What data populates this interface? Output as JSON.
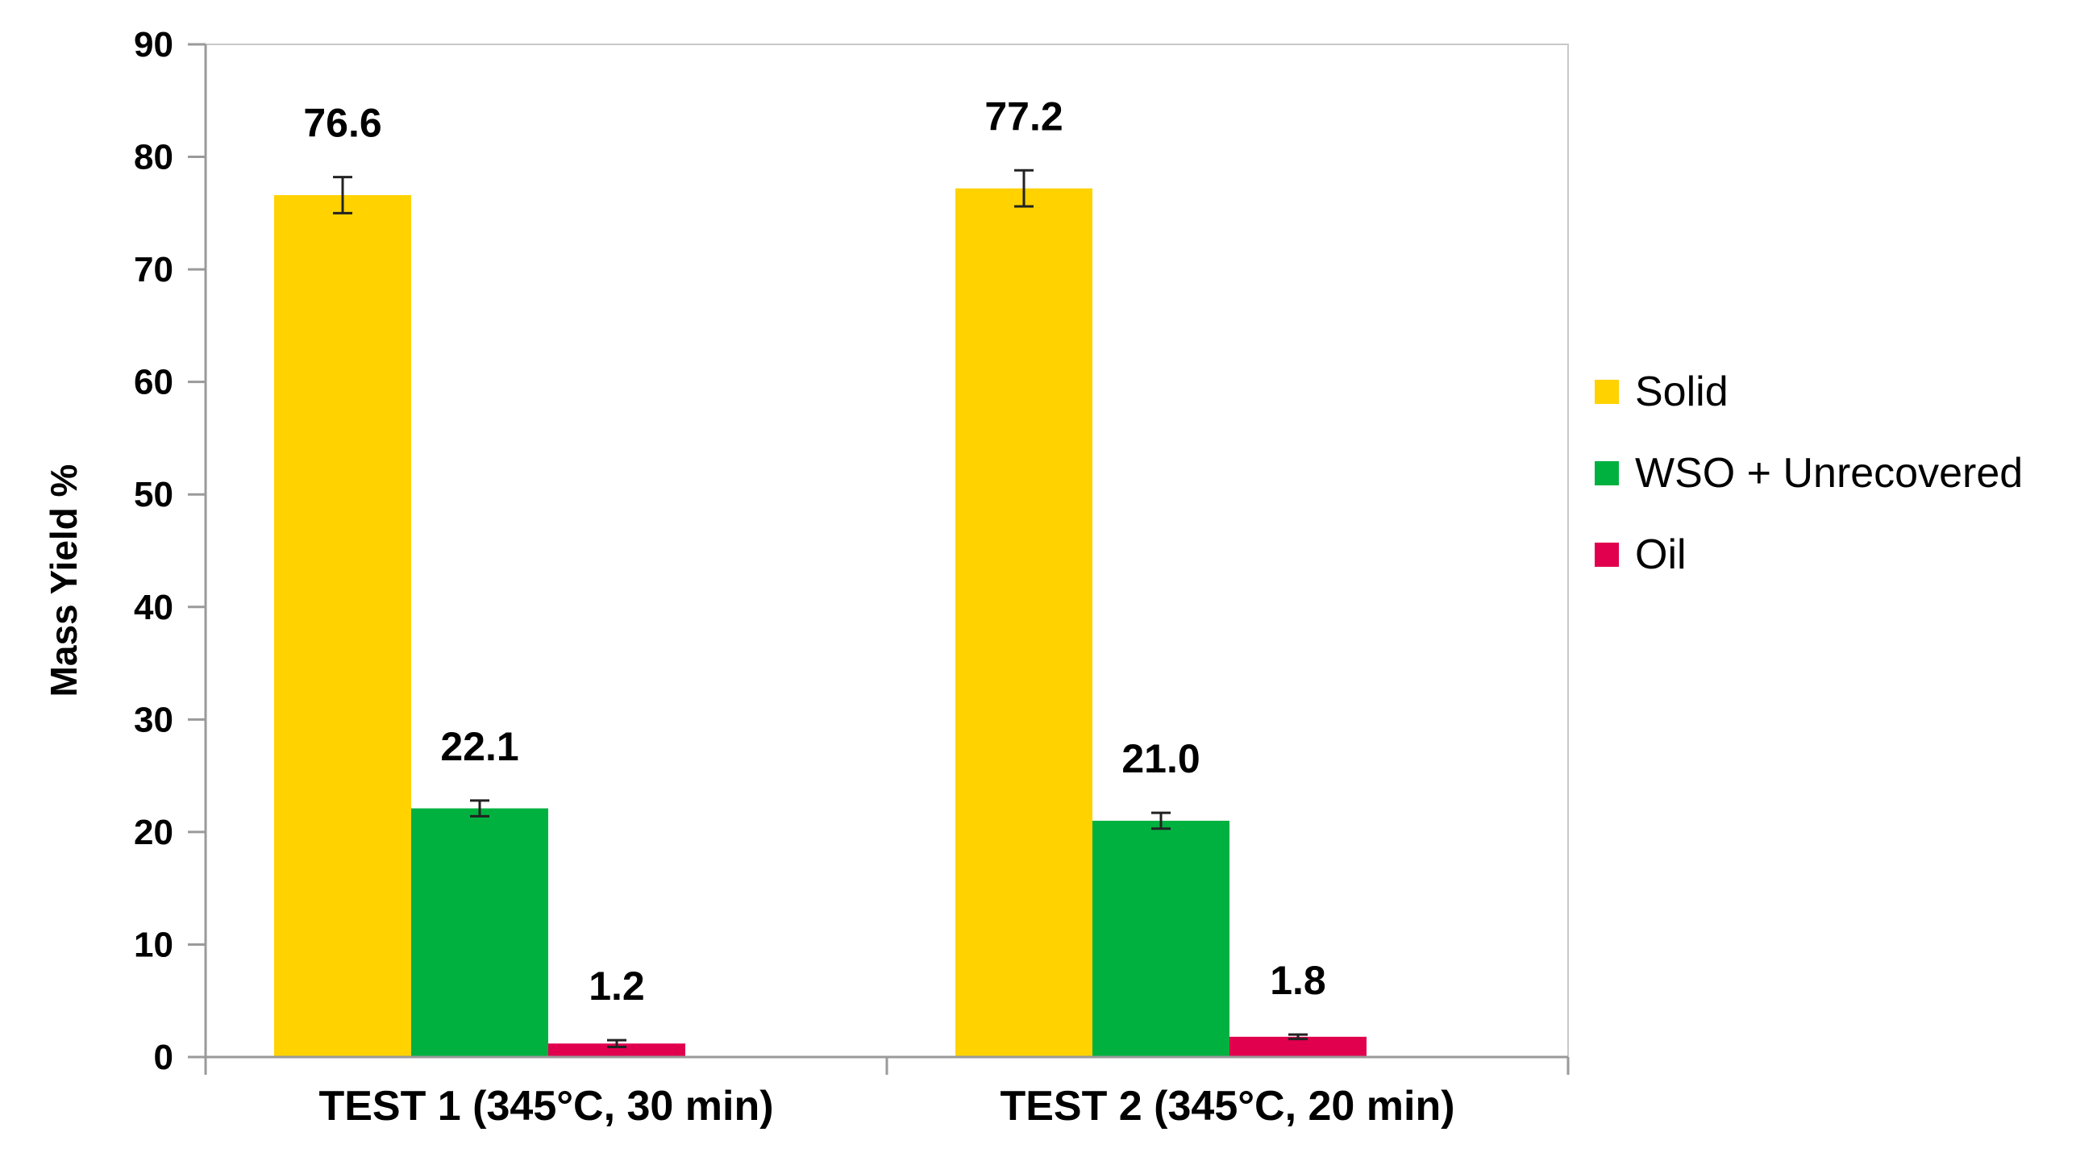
{
  "chart_data": {
    "type": "bar",
    "title": "",
    "xlabel": "",
    "ylabel": "Mass Yield %",
    "ylim": [
      0,
      90
    ],
    "yticks": [
      0,
      10,
      20,
      30,
      40,
      50,
      60,
      70,
      80,
      90
    ],
    "categories": [
      "TEST 1 (345°C, 30 min)",
      "TEST 2 (345°C, 20 min)"
    ],
    "series": [
      {
        "name": "Solid",
        "color": "#FFD200",
        "values": [
          76.6,
          77.2
        ],
        "errors": [
          1.6,
          1.6
        ],
        "labels": [
          "76.6",
          "77.2"
        ]
      },
      {
        "name": "WSO + Unrecovered",
        "color": "#00B140",
        "values": [
          22.1,
          21.0
        ],
        "errors": [
          0.7,
          0.7
        ],
        "labels": [
          "22.1",
          "21.0"
        ]
      },
      {
        "name": "Oil",
        "color": "#E0004D",
        "values": [
          1.2,
          1.8
        ],
        "errors": [
          0.3,
          0.2
        ],
        "labels": [
          "1.2",
          "1.8"
        ]
      },
      {
        "color": "#2E75B6",
        "values": [
          0.1,
          0.1
        ]
      }
    ],
    "legend": "right",
    "grid": false
  }
}
